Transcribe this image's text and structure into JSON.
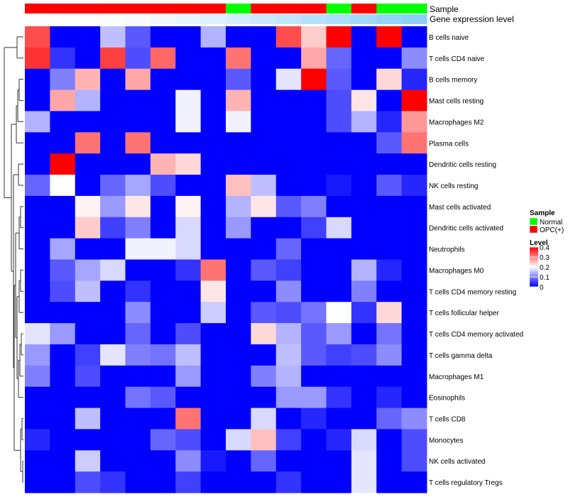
{
  "chart_data": {
    "type": "heatmap",
    "columns": 16,
    "rows": [
      "B cells naive",
      "T cells CD4 naive",
      "B cells memory",
      "Mast cells resting",
      "Macrophages M2",
      "Plasma cells",
      "Dendritic cells resting",
      "NK cells resting",
      "Mast cells activated",
      "Dendritic cells activated",
      "Neutrophils",
      "Macrophages M0",
      "T cells CD4 memory resting",
      "T cells follicular helper",
      "T cells CD4 memory activated",
      "T cells gamma delta",
      "Macrophages M1",
      "Eosinophils",
      "T cells CD8",
      "Monocytes",
      "NK cells activated",
      "T cells regulatory  Tregs"
    ],
    "annotations": {
      "sample": {
        "label": "Sample",
        "values": [
          "OPC(+)",
          "OPC(+)",
          "OPC(+)",
          "OPC(+)",
          "OPC(+)",
          "OPC(+)",
          "OPC(+)",
          "OPC(+)",
          "Normal",
          "OPC(+)",
          "OPC(+)",
          "OPC(+)",
          "Normal",
          "OPC(+)",
          "Normal",
          "Normal"
        ]
      },
      "gene_expression": {
        "label": "Gene expression level",
        "values": [
          0.0,
          0.0,
          0.02,
          0.05,
          0.08,
          0.13,
          0.2,
          0.28,
          0.36,
          0.44,
          0.52,
          0.62,
          0.7,
          0.78,
          0.88,
          0.96
        ]
      }
    },
    "values": [
      [
        0.34,
        0,
        0,
        0.15,
        0.07,
        0,
        0,
        0.14,
        0,
        0,
        0.34,
        0.24,
        0.4,
        0,
        0.4,
        0
      ],
      [
        0.36,
        0.04,
        0,
        0.35,
        0.06,
        0.32,
        0,
        0,
        0.31,
        0,
        0,
        0.27,
        0.08,
        0,
        0,
        0.11
      ],
      [
        0,
        0.1,
        0.26,
        0,
        0.27,
        0,
        0,
        0,
        0.07,
        0,
        0.18,
        0.4,
        0.07,
        0,
        0.23,
        0.03
      ],
      [
        0,
        0.27,
        0.14,
        0,
        0,
        0,
        0.19,
        0,
        0.26,
        0,
        0,
        0,
        0.06,
        0.22,
        0,
        0.4
      ],
      [
        0.14,
        0,
        0,
        0,
        0,
        0,
        0.19,
        0,
        0.19,
        0,
        0,
        0,
        0.06,
        0.14,
        0.03,
        0.28
      ],
      [
        0,
        0,
        0.31,
        0,
        0.31,
        0,
        0,
        0,
        0,
        0,
        0,
        0,
        0,
        0,
        0.07,
        0.31
      ],
      [
        0,
        0.4,
        0,
        0,
        0,
        0.26,
        0.23,
        0,
        0,
        0,
        0,
        0,
        0,
        0,
        0,
        0
      ],
      [
        0.08,
        0.2,
        0,
        0.08,
        0.13,
        0.06,
        0,
        0,
        0.25,
        0.15,
        0,
        0,
        0.02,
        0,
        0.07,
        0.03
      ],
      [
        0,
        0,
        0.21,
        0.12,
        0.22,
        0,
        0.21,
        0,
        0.14,
        0.22,
        0.07,
        0.1,
        0,
        0,
        0,
        0
      ],
      [
        0,
        0,
        0.24,
        0.05,
        0.1,
        0,
        0.17,
        0,
        0.12,
        0,
        0,
        0.05,
        0.17,
        0,
        0,
        0
      ],
      [
        0,
        0.13,
        0,
        0,
        0.19,
        0.19,
        0.17,
        0,
        0,
        0,
        0.08,
        0,
        0,
        0,
        0,
        0
      ],
      [
        0,
        0.07,
        0.13,
        0.17,
        0,
        0,
        0.04,
        0.31,
        0,
        0.07,
        0.05,
        0,
        0,
        0.14,
        0.03,
        0
      ],
      [
        0,
        0.06,
        0.15,
        0,
        0.04,
        0,
        0,
        0.22,
        0,
        0,
        0.11,
        0,
        0,
        0.1,
        0,
        0
      ],
      [
        0,
        0,
        0,
        0,
        0.11,
        0,
        0,
        0.16,
        0,
        0.07,
        0.06,
        0.09,
        0.2,
        0.04,
        0.23,
        0
      ],
      [
        0.18,
        0.12,
        0,
        0,
        0.08,
        0,
        0.06,
        0,
        0,
        0.23,
        0.14,
        0.07,
        0.12,
        0,
        0.09,
        0
      ],
      [
        0.12,
        0,
        0.05,
        0.18,
        0.1,
        0.09,
        0.15,
        0,
        0,
        0,
        0.15,
        0.07,
        0.05,
        0.06,
        0.11,
        0
      ],
      [
        0.1,
        0,
        0.06,
        0,
        0,
        0,
        0.12,
        0,
        0,
        0.1,
        0.14,
        0,
        0,
        0,
        0,
        0
      ],
      [
        0,
        0,
        0,
        0,
        0.09,
        0.07,
        0,
        0,
        0,
        0,
        0.12,
        0.12,
        0.04,
        0,
        0.03,
        0
      ],
      [
        0,
        0,
        0.15,
        0,
        0,
        0,
        0.31,
        0,
        0,
        0.17,
        0,
        0.03,
        0,
        0,
        0.08,
        0.11
      ],
      [
        0.03,
        0,
        0,
        0,
        0,
        0.08,
        0.06,
        0,
        0.17,
        0.25,
        0.05,
        0,
        0.03,
        0.17,
        0,
        0.06
      ],
      [
        0,
        0,
        0.16,
        0,
        0,
        0,
        0.11,
        0.02,
        0,
        0.08,
        0,
        0,
        0,
        0.18,
        0,
        0.06
      ],
      [
        0,
        0,
        0.06,
        0.04,
        0,
        0,
        0.05,
        0,
        0,
        0,
        0.04,
        0,
        0,
        0.18,
        0,
        0
      ]
    ],
    "legend_sample": {
      "title": "Sample",
      "entries": [
        {
          "label": "Normal",
          "color": "#00ff00"
        },
        {
          "label": "OPC(+)",
          "color": "#ff0000"
        }
      ]
    },
    "legend_level": {
      "title": "Level",
      "ticks": [
        "0.4",
        "0.3",
        "0.2",
        "0.1",
        "0"
      ],
      "range": [
        0,
        0.4
      ]
    },
    "colors": {
      "low": "#0000ff",
      "mid": "#ffffff",
      "high": "#ff0000",
      "gene_low": "#ffffff",
      "gene_high": "#87cefa"
    }
  }
}
